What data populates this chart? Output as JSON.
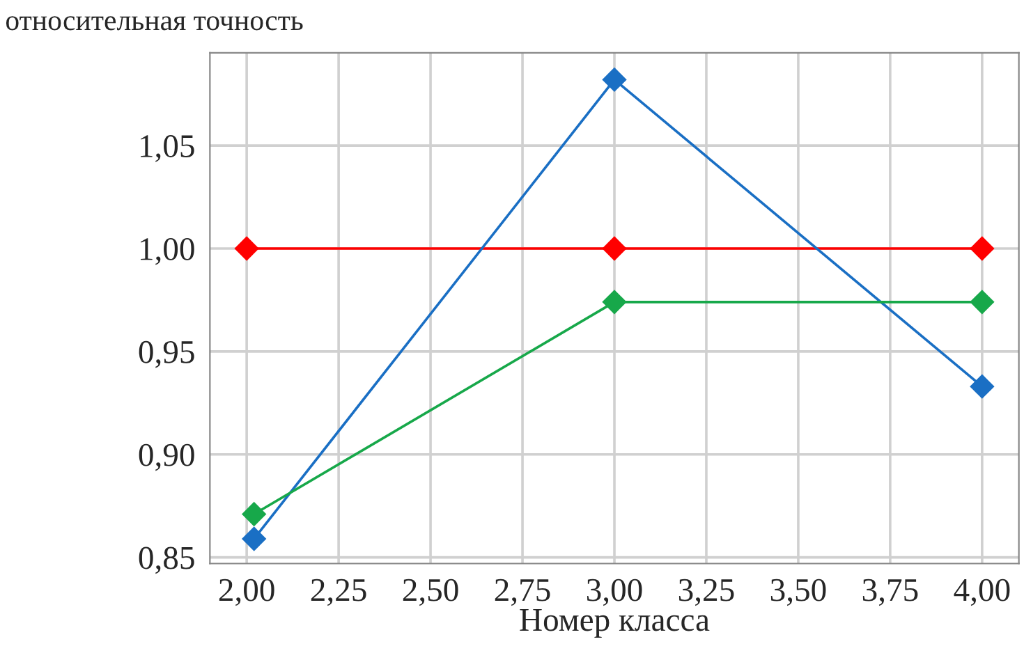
{
  "chart_data": {
    "type": "line",
    "ylabel": "относительная точность",
    "xlabel": "Номер класса",
    "series": [
      {
        "color": "#ff0000",
        "x": [
          2.0,
          3.0,
          4.0
        ],
        "values": [
          1.0,
          1.0,
          1.0
        ]
      },
      {
        "color": "#1a6fc4",
        "x": [
          2.02,
          3.0,
          4.0
        ],
        "values": [
          0.859,
          1.082,
          0.933
        ]
      },
      {
        "color": "#17a84a",
        "x": [
          2.02,
          3.0,
          4.0
        ],
        "values": [
          0.871,
          0.974,
          0.974
        ]
      }
    ],
    "xlim": [
      1.9,
      4.1
    ],
    "ylim": [
      0.847,
      1.095
    ],
    "xticks": [
      {
        "value": 2.0,
        "label": "2,00"
      },
      {
        "value": 2.25,
        "label": "2,25"
      },
      {
        "value": 2.5,
        "label": "2,50"
      },
      {
        "value": 2.75,
        "label": "2,75"
      },
      {
        "value": 3.0,
        "label": "3,00"
      },
      {
        "value": 3.25,
        "label": "3,25"
      },
      {
        "value": 3.5,
        "label": "3,50"
      },
      {
        "value": 3.75,
        "label": "3,75"
      },
      {
        "value": 4.0,
        "label": "4,00"
      }
    ],
    "yticks": [
      {
        "value": 0.85,
        "label": "0,85"
      },
      {
        "value": 0.9,
        "label": "0,90"
      },
      {
        "value": 0.95,
        "label": "0,95"
      },
      {
        "value": 1.0,
        "label": "1,00"
      },
      {
        "value": 1.05,
        "label": "1,05"
      }
    ],
    "grid": true,
    "marker": "diamond",
    "line_style": "solid",
    "legend": false
  }
}
